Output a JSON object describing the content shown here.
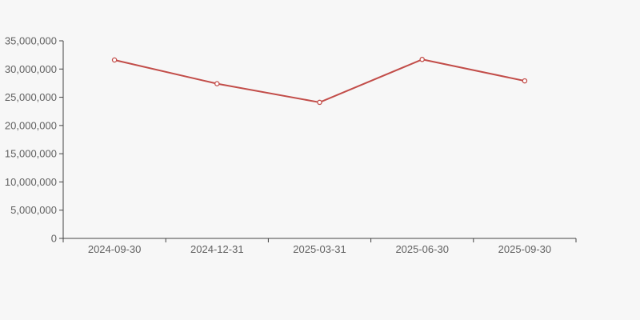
{
  "page": {
    "background_color": "#f7f7f7"
  },
  "chart_data": {
    "type": "line",
    "title": "",
    "xlabel": "",
    "ylabel": "",
    "categories": [
      "2024-09-30",
      "2024-12-31",
      "2025-03-31",
      "2025-06-30",
      "2025-09-30"
    ],
    "series": [
      {
        "name": "series-1",
        "values": [
          31600000,
          27400000,
          24100000,
          31700000,
          27900000
        ],
        "line_color": "#c24d49",
        "marker": "hollow-circle",
        "marker_fill": "#ffffff"
      }
    ],
    "ylim": [
      0,
      35000000
    ],
    "y_tick_values": [
      0,
      5000000,
      10000000,
      15000000,
      20000000,
      25000000,
      30000000,
      35000000
    ],
    "y_tick_labels": [
      "0",
      "5,000,000",
      "10,000,000",
      "15,000,000",
      "20,000,000",
      "25,000,000",
      "30,000,000",
      "35,000,000"
    ],
    "grid": false,
    "legend": false,
    "axis_color": "#444444",
    "tick_label_color": "#616161"
  }
}
